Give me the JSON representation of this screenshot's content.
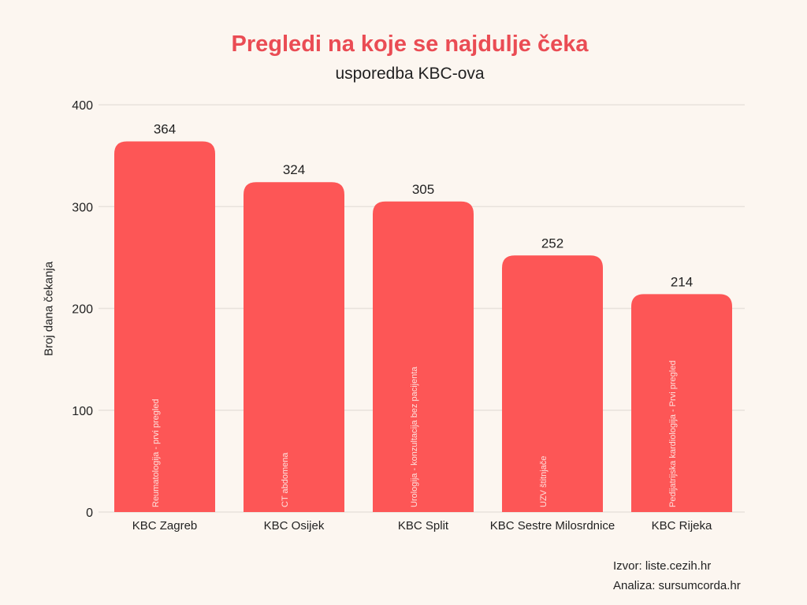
{
  "chart_data": {
    "type": "bar",
    "title": "Pregledi na koje se najdulje čeka",
    "subtitle": "usporedba KBC-ova",
    "xlabel": "",
    "ylabel": "Broj dana čekanja",
    "ylim": [
      0,
      400
    ],
    "yticks": [
      0,
      100,
      200,
      300,
      400
    ],
    "grid": true,
    "categories": [
      "KBC Zagreb",
      "KBC Osijek",
      "KBC Split",
      "KBC Sestre Milosrdnice",
      "KBC Rijeka"
    ],
    "values": [
      364,
      324,
      305,
      252,
      214
    ],
    "bar_labels": [
      "Reumatologija - prvi pregled",
      "CT abdomena",
      "Urologija - konzultacija bez pacijenta",
      "UZV štitnjače",
      "Pedijatrijska kardiologija - Prvi pregled"
    ],
    "colors": {
      "bar": "#fd5656",
      "title": "#ea4c54",
      "background": "#fcf6f0"
    }
  },
  "footer": {
    "source": "Izvor: liste.cezih.hr",
    "analysis": "Analiza: sursumcorda.hr"
  }
}
